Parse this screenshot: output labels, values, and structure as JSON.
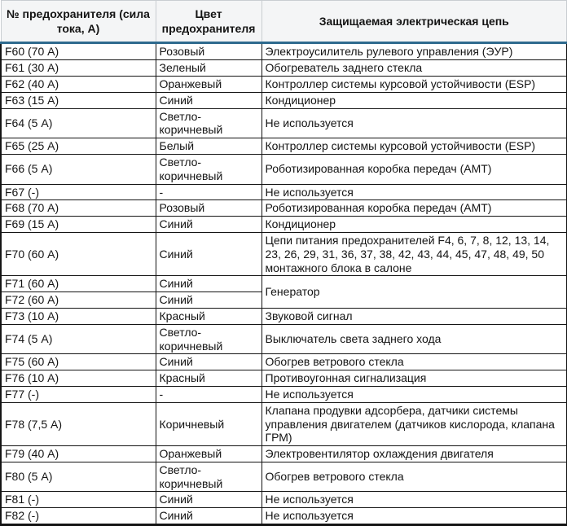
{
  "colors": {
    "header_background": "#f4f5f6",
    "header_border": "#c9cdd1",
    "header_accent_line": "#2e6a8e",
    "grid_border": "#141414",
    "text": "#141414"
  },
  "table": {
    "columns": {
      "fuse": "№ предохранителя (сила тока, А)",
      "color": "Цвет предохранителя",
      "circuit": "Защищаемая электрическая цепь"
    },
    "rows": [
      {
        "fuse": "F60 (70 А)",
        "color": "Розовый",
        "circuit": "Электроусилитель рулевого управления (ЭУР)"
      },
      {
        "fuse": "F61 (30 А)",
        "color": "Зеленый",
        "circuit": "Обогреватель заднего стекла"
      },
      {
        "fuse": "F62 (40 А)",
        "color": "Оранжевый",
        "circuit": "Контроллер системы курсовой устойчивости (ESP)"
      },
      {
        "fuse": "F63 (15 А)",
        "color": "Синий",
        "circuit": "Кондиционер"
      },
      {
        "fuse": "F64 (5 А)",
        "color": "Светло-коричневый",
        "circuit": "Не используется"
      },
      {
        "fuse": "F65 (25 А)",
        "color": "Белый",
        "circuit": "Контроллер системы курсовой устойчивости (ESP)"
      },
      {
        "fuse": "F66 (5 А)",
        "color": "Светло-коричневый",
        "circuit": "Роботизированная коробка передач (АМТ)"
      },
      {
        "fuse": "F67 (-)",
        "color": "-",
        "circuit": "Не используется"
      },
      {
        "fuse": "F68 (70 А)",
        "color": "Розовый",
        "circuit": "Роботизированная коробка передач (АМТ)"
      },
      {
        "fuse": "F69 (15 А)",
        "color": "Синий",
        "circuit": "Кондиционер"
      },
      {
        "fuse": "F70 (60 А)",
        "color": "Синий",
        "circuit": "Цепи питания предохранителей F4, 6, 7, 8, 12, 13, 14, 23, 26, 29, 31, 36, 37, 38, 42, 43, 44, 45, 47, 48, 49, 50 монтажного блока в салоне"
      },
      {
        "fuse": "F71 (60 А)",
        "color": "Синий",
        "circuit": "Генератор",
        "circuit_rowspan": 2
      },
      {
        "fuse": "F72 (60 А)",
        "color": "Синий",
        "circuit": null
      },
      {
        "fuse": "F73 (10 А)",
        "color": "Красный",
        "circuit": "Звуковой сигнал"
      },
      {
        "fuse": "F74 (5 А)",
        "color": "Светло-коричневый",
        "circuit": "Выключатель света заднего хода"
      },
      {
        "fuse": "F75 (60 А)",
        "color": "Синий",
        "circuit": "Обогрев ветрового стекла"
      },
      {
        "fuse": "F76 (10 А)",
        "color": "Красный",
        "circuit": "Противоугонная сигнализация"
      },
      {
        "fuse": "F77 (-)",
        "color": "-",
        "circuit": "Не используется"
      },
      {
        "fuse": "F78 (7,5 А)",
        "color": "Коричневый",
        "circuit": "Клапана продувки адсорбера, датчики системы управления двигателем (датчиков кислорода, клапана ГРМ)"
      },
      {
        "fuse": "F79 (40 А)",
        "color": "Оранжевый",
        "circuit": "Электровентилятор охлаждения двигателя"
      },
      {
        "fuse": "F80 (5 А)",
        "color": "Светло-коричневый",
        "circuit": "Обогрев ветрового стекла"
      },
      {
        "fuse": "F81 (-)",
        "color": "Синий",
        "circuit": "Не используется"
      },
      {
        "fuse": "F82 (-)",
        "color": "Синий",
        "circuit": "Не используется"
      }
    ]
  }
}
